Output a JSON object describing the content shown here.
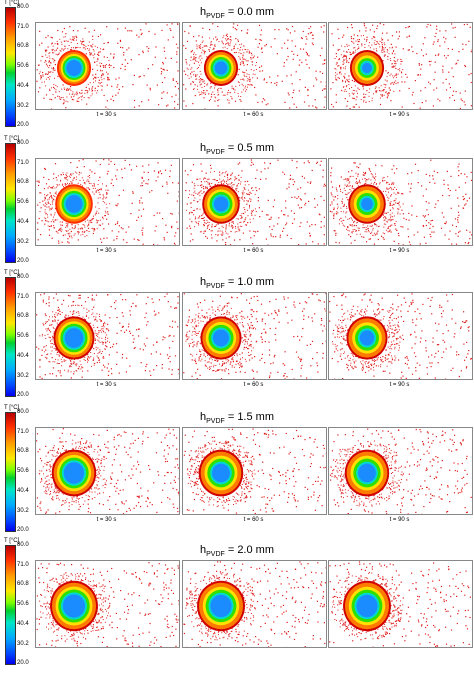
{
  "colorbar": {
    "unit": "T [°C]",
    "ticks": [
      "80.0",
      "71.0",
      "60.8",
      "50.6",
      "40.4",
      "30.2",
      "20.0"
    ]
  },
  "rows": [
    {
      "h_prefix": "h",
      "h_sub": "PVDF",
      "h_value": " = 0.0 mm",
      "labels": [
        "t = 30 s",
        "t = 60 s",
        "t = 90 s"
      ]
    },
    {
      "h_prefix": "h",
      "h_sub": "PVDF",
      "h_value": " = 0.5 mm",
      "labels": [
        "t = 30 s",
        "t = 60 s",
        "t = 90 s"
      ]
    },
    {
      "h_prefix": "h",
      "h_sub": "PVDF",
      "h_value": " = 1.0 mm",
      "labels": [
        "t = 30 s",
        "t = 60 s",
        "t = 90 s"
      ]
    },
    {
      "h_prefix": "h",
      "h_sub": "PVDF",
      "h_value": " = 1.5 mm",
      "labels": [
        "t = 30 s",
        "t = 60 s",
        "t = 90 s"
      ]
    },
    {
      "h_prefix": "h",
      "h_sub": "PVDF",
      "h_value": " = 2.0 mm",
      "labels": []
    }
  ],
  "colors": {
    "particle": "#e02020",
    "hot": "#d00000",
    "cold": "#1a7fff"
  }
}
